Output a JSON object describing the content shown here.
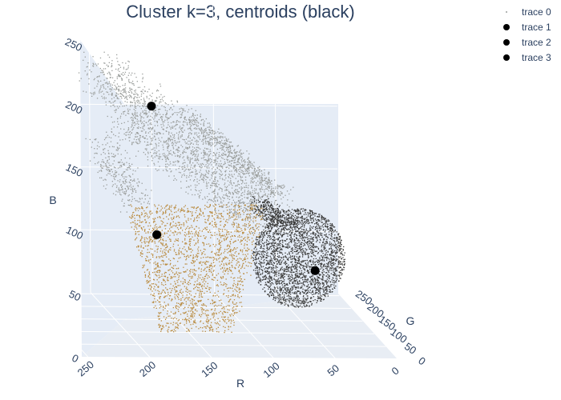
{
  "chart_data": {
    "type": "scatter3d",
    "title": "Cluster k=3, centroids (black)",
    "axes": {
      "x": {
        "label": "R",
        "range": [
          0,
          255
        ],
        "ticks": [
          0,
          50,
          100,
          150,
          200,
          250
        ]
      },
      "y": {
        "label": "G",
        "range": [
          0,
          255
        ],
        "ticks": [
          0,
          50,
          100,
          150,
          200,
          250
        ]
      },
      "z": {
        "label": "B",
        "range": [
          0,
          255
        ],
        "ticks": [
          0,
          50,
          100,
          150,
          200,
          250
        ]
      }
    },
    "series": [
      {
        "name": "trace 0",
        "mode": "markers",
        "marker_size": "small",
        "clusters": [
          {
            "color": "#9b9e9c",
            "centroid": [
              165,
              175,
              165
            ]
          },
          {
            "color": "#b98a3e",
            "centroid": [
              170,
              128,
              72
            ]
          },
          {
            "color": "#3b3b3a",
            "centroid": [
              55,
              60,
              58
            ]
          }
        ]
      },
      {
        "name": "trace 1",
        "mode": "markers",
        "marker_color": "#000000",
        "points": [
          [
            170,
            128,
            72
          ]
        ]
      },
      {
        "name": "trace 2",
        "mode": "markers",
        "marker_color": "#000000",
        "points": [
          [
            55,
            60,
            58
          ]
        ]
      },
      {
        "name": "trace 3",
        "mode": "markers",
        "marker_color": "#000000",
        "points": [
          [
            165,
            175,
            165
          ]
        ]
      }
    ],
    "legend_position": "top-right",
    "grid": true
  }
}
